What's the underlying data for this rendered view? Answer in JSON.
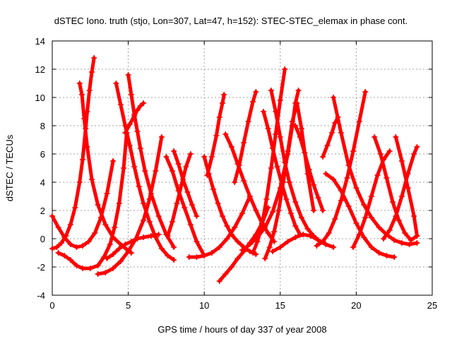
{
  "chart_data": {
    "type": "scatter",
    "title": "dSTEC Iono. truth (stjo, Lon=307, Lat=47, h=152): STEC-STEC_elemax in phase cont.",
    "xlabel": "GPS time / hours of day 337 of year 2008",
    "ylabel": "dSTEC  / TECUs",
    "xlim": [
      0,
      25
    ],
    "ylim": [
      -4,
      14
    ],
    "xticks": [
      0,
      5,
      10,
      15,
      20,
      25
    ],
    "yticks": [
      -4,
      -2,
      0,
      2,
      4,
      6,
      8,
      10,
      12,
      14
    ],
    "grid": true,
    "marker": "+",
    "color": "#ff0000",
    "series": [
      {
        "x": [
          0.0,
          0.3,
          0.6,
          0.9,
          1.2,
          1.5,
          1.8,
          2.0,
          2.2,
          2.3,
          2.45,
          2.6,
          2.75
        ],
        "y": [
          -0.7,
          -0.6,
          -0.3,
          0.2,
          1.0,
          2.2,
          4.0,
          5.6,
          7.8,
          9.0,
          10.5,
          11.8,
          12.8
        ]
      },
      {
        "x": [
          0.0,
          0.4,
          0.8,
          1.2,
          1.6,
          2.0,
          2.4,
          2.8,
          3.2,
          3.6,
          4.0
        ],
        "y": [
          1.6,
          0.8,
          0.1,
          -0.4,
          -0.6,
          -0.5,
          -0.2,
          0.4,
          1.5,
          3.2,
          5.5
        ]
      },
      {
        "x": [
          1.8,
          1.95,
          2.1,
          2.3,
          2.6,
          3.0,
          3.5,
          4.0,
          4.6,
          5.2
        ],
        "y": [
          11.0,
          10.2,
          8.5,
          6.5,
          4.2,
          2.4,
          1.0,
          0.1,
          -0.5,
          -1.0
        ]
      },
      {
        "x": [
          0.4,
          0.8,
          1.2,
          1.6,
          2.0,
          2.5,
          3.0,
          3.4,
          3.8,
          4.1,
          4.4,
          4.7,
          4.9
        ],
        "y": [
          -1.0,
          -1.2,
          -1.5,
          -1.9,
          -2.1,
          -2.1,
          -1.9,
          -1.3,
          -0.4,
          0.8,
          2.5,
          5.0,
          7.5
        ]
      },
      {
        "x": [
          3.0,
          3.5,
          4.0,
          4.5,
          5.0,
          5.5,
          6.0,
          6.4,
          6.8,
          7.2
        ],
        "y": [
          -2.5,
          -2.4,
          -2.1,
          -1.6,
          -0.9,
          0.0,
          1.3,
          2.8,
          4.8,
          7.2
        ]
      },
      {
        "x": [
          4.2,
          4.5,
          4.8,
          5.1,
          5.4,
          5.7,
          6.0,
          6.4,
          6.8,
          7.2,
          7.6,
          8.0
        ],
        "y": [
          11.0,
          9.5,
          8.0,
          6.6,
          5.1,
          3.7,
          2.5,
          1.2,
          0.1,
          -0.7,
          -1.2,
          -1.5
        ]
      },
      {
        "x": [
          5.0,
          5.2,
          5.4,
          5.6,
          5.8,
          6.1,
          6.5,
          7.0,
          7.5,
          8.0
        ],
        "y": [
          11.6,
          10.2,
          8.8,
          7.6,
          6.4,
          4.8,
          3.2,
          1.6,
          0.3,
          -0.6
        ]
      },
      {
        "x": [
          4.8,
          5.1,
          5.4,
          5.6,
          5.8,
          6.0
        ],
        "y": [
          7.5,
          8.1,
          8.7,
          9.1,
          9.4,
          9.6
        ]
      },
      {
        "x": [
          3.6,
          4.0,
          4.4,
          4.8,
          5.2,
          5.6,
          6.0,
          6.5,
          7.0
        ],
        "y": [
          -1.4,
          -1.1,
          -0.7,
          -0.4,
          -0.2,
          0.0,
          0.1,
          0.2,
          0.3
        ]
      },
      {
        "x": [
          7.5,
          7.9,
          8.3,
          8.7,
          9.1,
          9.5,
          10.0
        ],
        "y": [
          5.8,
          4.8,
          3.4,
          2.2,
          1.0,
          -0.2,
          -1.2
        ]
      },
      {
        "x": [
          7.6,
          7.9,
          8.2,
          8.5,
          8.8,
          9.1
        ],
        "y": [
          0.2,
          1.2,
          2.5,
          3.8,
          5.1,
          6.0
        ]
      },
      {
        "x": [
          8.0,
          8.3,
          8.6,
          8.9,
          9.2,
          9.5
        ],
        "y": [
          6.2,
          5.3,
          4.2,
          3.3,
          2.4,
          1.6
        ]
      },
      {
        "x": [
          9.0,
          9.5,
          10.0,
          10.5,
          11.0,
          11.5,
          12.0,
          12.5,
          13.0
        ],
        "y": [
          -1.3,
          -1.3,
          -1.2,
          -1.0,
          -0.6,
          0.0,
          0.8,
          1.8,
          3.0
        ]
      },
      {
        "x": [
          10.0,
          10.3,
          10.6,
          10.9,
          11.2,
          11.5,
          11.8,
          12.2,
          12.6,
          13.0,
          13.4
        ],
        "y": [
          5.8,
          4.6,
          3.5,
          2.5,
          1.6,
          0.9,
          0.3,
          -0.2,
          -0.6,
          -0.9,
          -1.1
        ]
      },
      {
        "x": [
          10.2,
          10.5,
          10.8,
          11.0,
          11.2,
          11.3
        ],
        "y": [
          4.5,
          5.8,
          7.3,
          8.6,
          9.6,
          10.2
        ]
      },
      {
        "x": [
          11.0,
          11.4,
          11.8,
          12.2,
          12.6,
          13.0,
          13.4,
          13.8,
          14.2
        ],
        "y": [
          -3.0,
          -2.5,
          -2.0,
          -1.4,
          -0.9,
          -0.3,
          0.3,
          1.1,
          2.2
        ]
      },
      {
        "x": [
          11.4,
          11.8,
          12.2,
          12.6,
          13.0,
          13.4,
          13.8,
          14.2,
          14.6
        ],
        "y": [
          7.4,
          6.5,
          5.3,
          4.1,
          3.0,
          2.0,
          1.1,
          0.4,
          -0.2
        ]
      },
      {
        "x": [
          12.0,
          12.3,
          12.6,
          12.9,
          13.2,
          13.4
        ],
        "y": [
          4.0,
          5.2,
          6.8,
          8.3,
          9.7,
          10.4
        ]
      },
      {
        "x": [
          12.5,
          13.0,
          13.5,
          14.0,
          14.5,
          15.0,
          15.5,
          15.8,
          16.0,
          16.2
        ],
        "y": [
          -0.8,
          -0.4,
          0.1,
          0.8,
          1.9,
          3.6,
          6.0,
          8.0,
          9.6,
          10.5
        ]
      },
      {
        "x": [
          13.2,
          13.5,
          13.8,
          14.1,
          14.4,
          14.7,
          15.0,
          15.3
        ],
        "y": [
          -1.0,
          -0.2,
          1.0,
          2.8,
          5.0,
          7.4,
          9.8,
          12.0
        ]
      },
      {
        "x": [
          13.9,
          14.2,
          14.5,
          14.8,
          15.1,
          15.4,
          15.7,
          16.0,
          16.3
        ],
        "y": [
          9.0,
          7.8,
          6.4,
          5.1,
          3.9,
          2.8,
          1.8,
          0.9,
          0.3
        ]
      },
      {
        "x": [
          14.0,
          14.3,
          14.6,
          14.9,
          15.2,
          15.5,
          15.8,
          16.1,
          16.4,
          16.8,
          17.2
        ],
        "y": [
          -1.4,
          -0.6,
          0.5,
          2.0,
          4.0,
          6.2,
          8.3,
          9.6,
          7.8,
          4.6,
          2.0
        ]
      },
      {
        "x": [
          14.4,
          14.7,
          15.0,
          15.3,
          15.6,
          16.0,
          16.4,
          16.8,
          17.2,
          17.6,
          18.0
        ],
        "y": [
          10.5,
          9.0,
          7.2,
          5.4,
          4.0,
          2.6,
          1.5,
          0.7,
          0.2,
          -0.2,
          -0.4
        ]
      },
      {
        "x": [
          16.0,
          16.3,
          16.6,
          16.9,
          17.2,
          17.5,
          17.8
        ],
        "y": [
          8.0,
          7.2,
          6.1,
          4.9,
          3.8,
          2.9,
          2.0
        ]
      },
      {
        "x": [
          14.5,
          15.0,
          15.5,
          16.0,
          16.5,
          17.0,
          17.5,
          18.0,
          18.5
        ],
        "y": [
          -0.9,
          -0.6,
          -0.2,
          0.1,
          0.3,
          0.2,
          -0.1,
          -0.4,
          -0.6
        ]
      },
      {
        "x": [
          17.4,
          17.8,
          18.2,
          18.6,
          19.0,
          19.4,
          19.8,
          20.2,
          20.6
        ],
        "y": [
          -0.5,
          -0.2,
          0.4,
          1.4,
          2.7,
          4.3,
          6.2,
          8.3,
          10.4
        ]
      },
      {
        "x": [
          17.8,
          18.1,
          18.4,
          18.6,
          18.8
        ],
        "y": [
          5.8,
          6.6,
          7.5,
          8.2,
          8.6
        ]
      },
      {
        "x": [
          18.0,
          18.5,
          19.0,
          19.5,
          20.0,
          20.5,
          21.0,
          21.5,
          22.0,
          22.5
        ],
        "y": [
          4.6,
          4.2,
          3.4,
          2.3,
          1.1,
          0.1,
          -0.6,
          -1.0,
          -1.2,
          -1.3
        ]
      },
      {
        "x": [
          18.5,
          19.0,
          19.5,
          20.0,
          20.5,
          21.0,
          21.5,
          22.0,
          22.5,
          23.0,
          23.5,
          24.0
        ],
        "y": [
          10.0,
          7.5,
          5.2,
          3.6,
          2.4,
          1.5,
          0.8,
          0.3,
          -0.1,
          -0.3,
          -0.4,
          -0.3
        ]
      },
      {
        "x": [
          19.8,
          20.2,
          20.6,
          21.0,
          21.4,
          21.8,
          22.2
        ],
        "y": [
          -0.6,
          0.3,
          1.5,
          3.0,
          4.5,
          5.6,
          6.2
        ]
      },
      {
        "x": [
          21.2,
          21.6,
          22.0,
          22.4,
          22.8,
          23.2,
          23.6,
          24.0
        ],
        "y": [
          7.2,
          6.0,
          4.3,
          2.6,
          1.3,
          0.4,
          -0.1,
          0.2
        ]
      },
      {
        "x": [
          21.8,
          22.2,
          22.6,
          23.0,
          23.4,
          23.8,
          24.0
        ],
        "y": [
          0.0,
          0.6,
          1.6,
          3.0,
          4.6,
          6.0,
          6.5
        ]
      },
      {
        "x": [
          22.6,
          23.0,
          23.4,
          23.8,
          24.0
        ],
        "y": [
          7.2,
          5.5,
          3.6,
          1.6,
          0.2
        ]
      }
    ]
  }
}
